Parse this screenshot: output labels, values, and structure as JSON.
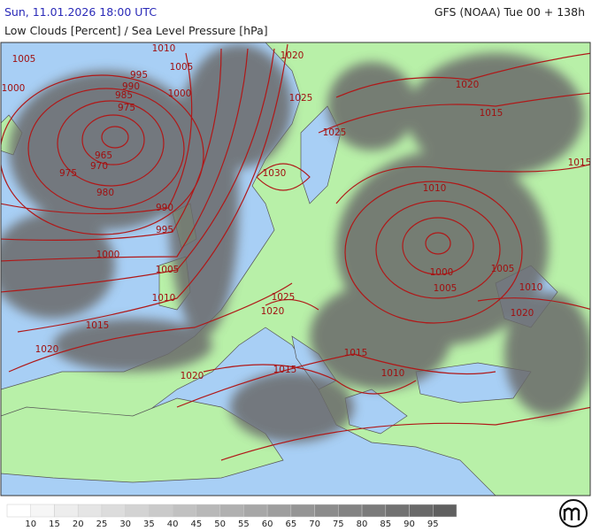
{
  "header": {
    "valid_time": "Sun, 11.01.2026 18:00 UTC",
    "model_run": "GFS (NOAA) Tue 00 + 138h",
    "subtitle": "Low Clouds [Percent] / Sea Level Pressure [hPa]"
  },
  "isobar_labels": [
    1010,
    1005,
    1005,
    995,
    1000,
    990,
    985,
    1000,
    975,
    965,
    970,
    975,
    980,
    990,
    995,
    1000,
    1005,
    1010,
    1015,
    1020,
    1020,
    1025,
    1025,
    1030,
    1020,
    1015,
    1015,
    1010,
    1000,
    1005,
    1005,
    1010,
    1020,
    1025,
    1020,
    1015,
    1015,
    1010,
    1020
  ],
  "legend": {
    "labels": [
      10,
      15,
      20,
      25,
      30,
      35,
      40,
      45,
      50,
      55,
      60,
      65,
      70,
      75,
      80,
      85,
      90,
      95
    ]
  }
}
